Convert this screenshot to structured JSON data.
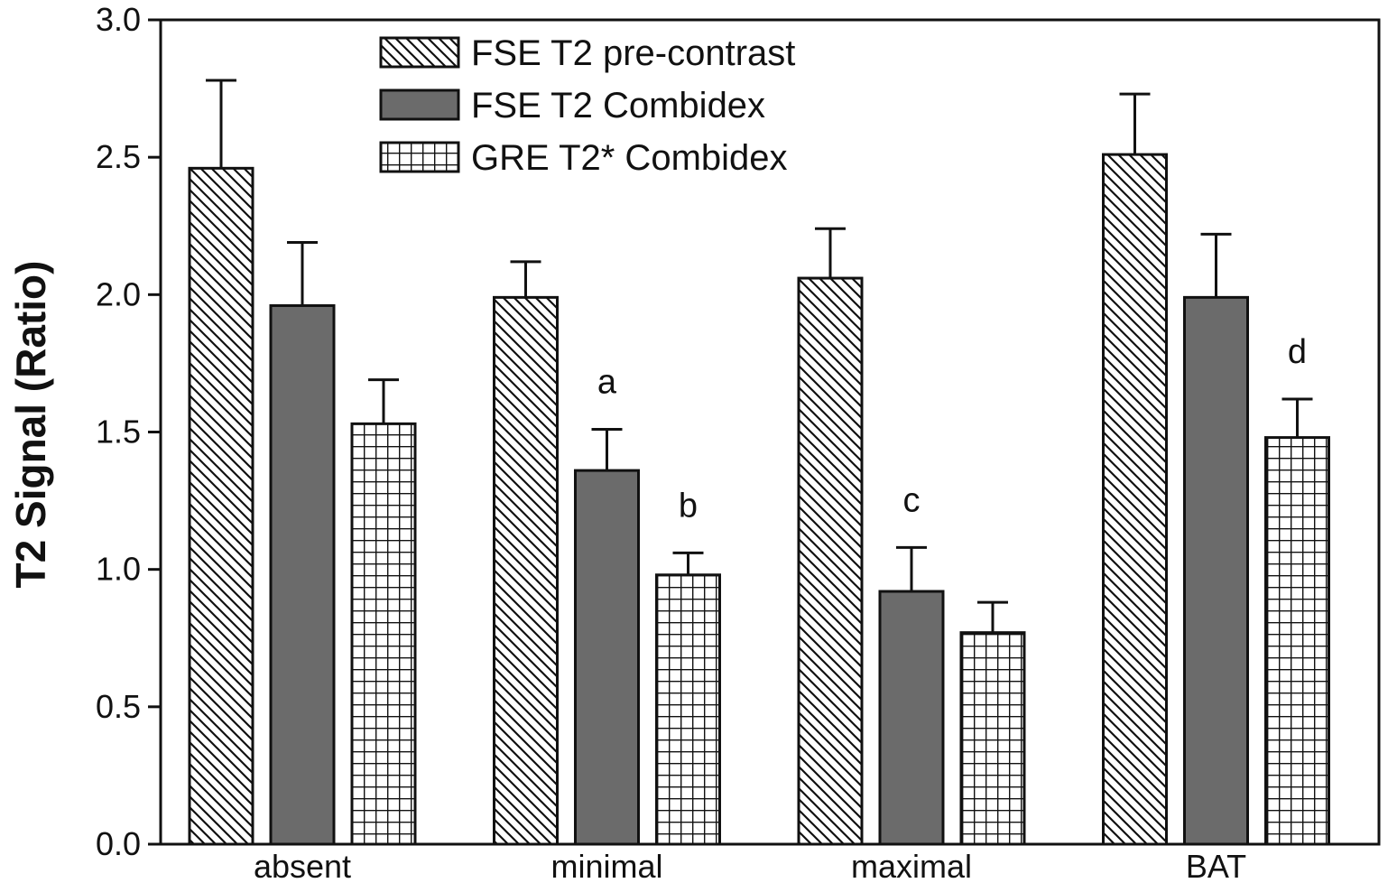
{
  "chart_data": {
    "type": "bar",
    "title": "",
    "xlabel": "",
    "ylabel": "T2 Signal (Ratio)",
    "ylim": [
      0,
      3.0
    ],
    "yticks": [
      "0.0",
      "0.5",
      "1.0",
      "1.5",
      "2.0",
      "2.5",
      "3.0"
    ],
    "grid": false,
    "legend_position": "top-left",
    "categories": [
      "absent",
      "minimal",
      "maximal",
      "BAT"
    ],
    "series": [
      {
        "name": "FSE T2 pre-contrast",
        "pattern": "diagonal-hatch",
        "fill": "#ffffff",
        "values": [
          2.46,
          1.99,
          2.06,
          2.51
        ],
        "errors": [
          0.32,
          0.13,
          0.18,
          0.22
        ]
      },
      {
        "name": "FSE T2 Combidex",
        "pattern": "solid",
        "fill": "#6b6b6b",
        "values": [
          1.96,
          1.36,
          0.92,
          1.99
        ],
        "errors": [
          0.23,
          0.15,
          0.16,
          0.23
        ]
      },
      {
        "name": "GRE T2* Combidex",
        "pattern": "grid",
        "fill": "#ffffff",
        "values": [
          1.53,
          0.98,
          0.77,
          1.48
        ],
        "errors": [
          0.16,
          0.08,
          0.11,
          0.14
        ]
      }
    ],
    "annotations": [
      {
        "text": "a",
        "category": "minimal",
        "series": 1
      },
      {
        "text": "b",
        "category": "minimal",
        "series": 2
      },
      {
        "text": "c",
        "category": "maximal",
        "series": 1
      },
      {
        "text": "d",
        "category": "BAT",
        "series": 2
      }
    ]
  }
}
